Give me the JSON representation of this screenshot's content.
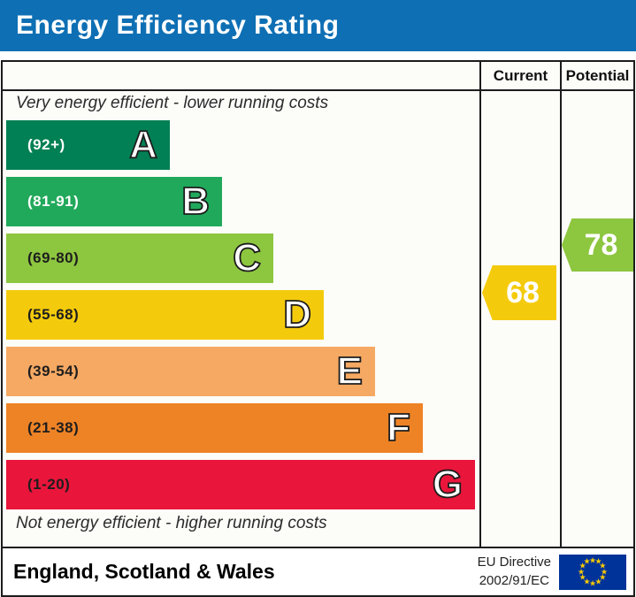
{
  "header": {
    "title": "Energy Efficiency Rating",
    "bg_color": "#0e6fb4",
    "text_color": "#ffffff"
  },
  "table": {
    "columns": {
      "current_label": "Current",
      "potential_label": "Potential"
    },
    "caption_top": "Very energy efficient - lower running costs",
    "caption_bottom": "Not energy efficient - higher running costs",
    "bands": [
      {
        "letter": "A",
        "range": "(92+)",
        "color": "#008054",
        "text_color": "#ffffff"
      },
      {
        "letter": "B",
        "range": "(81-91)",
        "color": "#21a95b",
        "text_color": "#ffffff"
      },
      {
        "letter": "C",
        "range": "(69-80)",
        "color": "#8dc63f",
        "text_color": "#1e1e1e"
      },
      {
        "letter": "D",
        "range": "(55-68)",
        "color": "#f4cb0c",
        "text_color": "#1e1e1e"
      },
      {
        "letter": "E",
        "range": "(39-54)",
        "color": "#f5a963",
        "text_color": "#1e1e1e"
      },
      {
        "letter": "F",
        "range": "(21-38)",
        "color": "#ee8326",
        "text_color": "#1e1e1e"
      },
      {
        "letter": "G",
        "range": "(1-20)",
        "color": "#e9153b",
        "text_color": "#1e1e1e"
      }
    ],
    "current": {
      "value": "68",
      "color": "#f4cb0c"
    },
    "potential": {
      "value": "78",
      "color": "#8dc63f"
    }
  },
  "footer": {
    "region": "England, Scotland & Wales",
    "directive_line1": "EU Directive",
    "directive_line2": "2002/91/EC",
    "flag": {
      "bg_color": "#003399",
      "star_color": "#ffcc00"
    }
  },
  "chart_data": {
    "type": "bar",
    "title": "Energy Efficiency Rating",
    "categories": [
      "A",
      "B",
      "C",
      "D",
      "E",
      "F",
      "G"
    ],
    "band_ranges": [
      "92+",
      "81-91",
      "69-80",
      "55-68",
      "39-54",
      "21-38",
      "1-20"
    ],
    "band_colors": [
      "#008054",
      "#21a95b",
      "#8dc63f",
      "#f4cb0c",
      "#f5a963",
      "#ee8326",
      "#e9153b"
    ],
    "current_rating": 68,
    "current_band": "D",
    "potential_rating": 78,
    "potential_band": "C",
    "axis_note_top": "Very energy efficient - lower running costs",
    "axis_note_bottom": "Not energy efficient - higher running costs",
    "region": "England, Scotland & Wales",
    "directive": "EU Directive 2002/91/EC"
  }
}
